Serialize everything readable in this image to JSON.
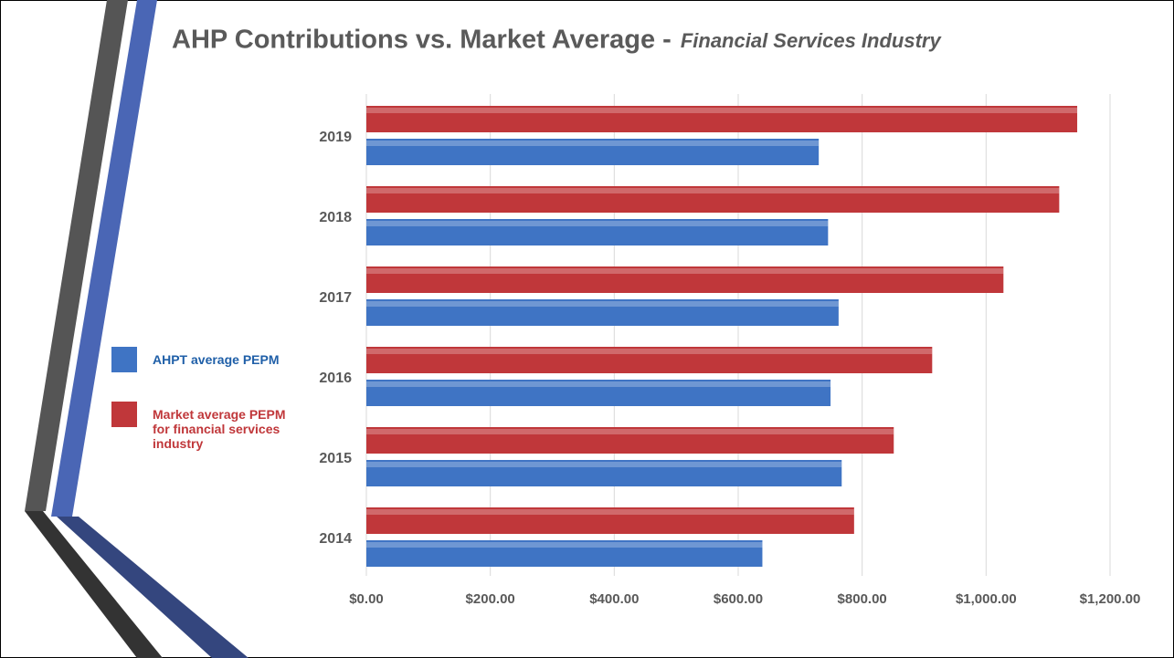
{
  "chart_data": {
    "type": "bar",
    "orientation": "horizontal",
    "title": "AHP Contributions vs. Market Average -",
    "subtitle": "Financial Services Industry",
    "categories": [
      "2014",
      "2015",
      "2016",
      "2017",
      "2018",
      "2019"
    ],
    "series": [
      {
        "name": "Market average PEPM for financial services industry",
        "color": "#c0373a",
        "values": [
          787,
          851,
          913,
          1028,
          1118,
          1147
        ]
      },
      {
        "name": "AHPT average PEPM",
        "color": "#3f74c4",
        "values": [
          639,
          767,
          749,
          762,
          745,
          730
        ]
      }
    ],
    "xlim": [
      0,
      1200
    ],
    "xticks": [
      {
        "value": 0,
        "label": "$0.00"
      },
      {
        "value": 200,
        "label": "$200.00"
      },
      {
        "value": 400,
        "label": "$400.00"
      },
      {
        "value": 600,
        "label": "$600.00"
      },
      {
        "value": 800,
        "label": "$800.00"
      },
      {
        "value": 1000,
        "label": "$1,000.00"
      },
      {
        "value": 1200,
        "label": "$1,200.00"
      }
    ],
    "grid": true,
    "legend": "left"
  }
}
